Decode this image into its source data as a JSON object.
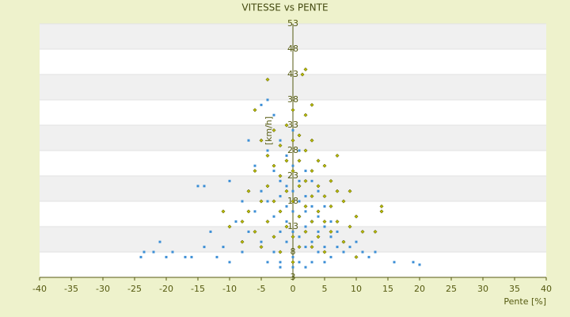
{
  "chart_data": {
    "type": "scatter",
    "title": "VITESSE vs PENTE",
    "x_label": "Pente [%]",
    "y_label": "[km/h]",
    "xlim": [
      -40,
      40
    ],
    "xticks": [
      -40,
      -35,
      -30,
      -25,
      -20,
      -15,
      -10,
      -5,
      0,
      5,
      10,
      15,
      20,
      25,
      30,
      35,
      40
    ],
    "ylim": [
      3,
      53
    ],
    "yticks": [
      3,
      8,
      13,
      18,
      23,
      28,
      33,
      38,
      43,
      48,
      53
    ],
    "grid": true,
    "series": [
      {
        "color": "#3d8fd6",
        "marker": "square",
        "x": [
          -24,
          -23.5,
          -22,
          -21,
          -20,
          -19,
          -17,
          -16,
          -15,
          -14,
          -14,
          -13,
          -12,
          -11,
          -10,
          -10,
          -9,
          -8,
          -8,
          -7,
          -7,
          -6,
          -6,
          -5,
          -5,
          -5,
          -4,
          -4,
          -4,
          -4,
          -3,
          -3,
          -3,
          -3,
          -2,
          -2,
          -2,
          -2,
          -2,
          -1,
          -1,
          -1,
          -1,
          -1,
          0,
          0,
          0,
          0,
          0,
          0,
          0,
          1,
          1,
          1,
          1,
          1,
          1,
          2,
          2,
          2,
          2,
          2,
          3,
          3,
          3,
          3,
          3,
          4,
          4,
          4,
          4,
          5,
          5,
          5,
          6,
          6,
          6,
          7,
          7,
          8,
          8,
          9,
          10,
          11,
          12,
          13,
          16,
          19,
          20,
          -2,
          2,
          5
        ],
        "y": [
          7,
          8,
          8,
          10,
          7,
          8,
          7,
          7,
          21,
          21,
          9,
          12,
          7,
          9,
          22,
          6,
          14,
          18,
          8,
          30,
          12,
          25,
          16,
          37,
          20,
          10,
          38,
          28,
          18,
          6,
          35,
          24,
          15,
          8,
          30,
          22,
          19,
          12,
          6,
          27,
          21,
          17,
          14,
          10,
          32,
          25,
          20,
          16,
          12,
          7,
          5,
          28,
          22,
          18,
          15,
          11,
          6,
          24,
          19,
          16,
          13,
          9,
          22,
          17,
          14,
          10,
          6,
          20,
          15,
          12,
          8,
          17,
          13,
          9,
          14,
          11,
          7,
          12,
          9,
          10,
          8,
          9,
          10,
          8,
          7,
          8,
          6,
          6,
          5.5,
          5,
          5,
          6
        ]
      },
      {
        "color": "#b5b800",
        "marker": "diamond",
        "x": [
          -8,
          -8,
          -7,
          -7,
          -6,
          -6,
          -6,
          -5,
          -5,
          -5,
          -4,
          -4,
          -4,
          -4,
          -3,
          -3,
          -3,
          -3,
          -2,
          -2,
          -2,
          -2,
          -1,
          -1,
          -1,
          -1,
          0,
          0,
          0,
          0,
          0,
          0,
          1,
          1,
          1,
          1,
          1,
          1.5,
          2,
          2,
          2,
          2,
          2,
          2,
          3,
          3,
          3,
          3,
          3,
          3,
          4,
          4,
          4,
          4,
          5,
          5,
          5,
          5,
          6,
          6,
          6,
          7,
          7,
          7,
          8,
          8,
          9,
          9,
          10,
          11,
          13,
          14,
          14,
          -10,
          -11,
          10
        ],
        "y": [
          14,
          10,
          20,
          16,
          36,
          24,
          12,
          30,
          18,
          9,
          42,
          27,
          21,
          14,
          32,
          25,
          18,
          11,
          29,
          23,
          16,
          8,
          33,
          26,
          20,
          13,
          36,
          30,
          24,
          18,
          11,
          6,
          31,
          26,
          21,
          15,
          9,
          43,
          44,
          35,
          28,
          22,
          17,
          12,
          37,
          30,
          24,
          19,
          14,
          9,
          26,
          21,
          16,
          11,
          25,
          19,
          14,
          8,
          22,
          17,
          12,
          27,
          20,
          14,
          18,
          10,
          20,
          13,
          15,
          12,
          12,
          16,
          17,
          13,
          16,
          7
        ]
      }
    ]
  }
}
